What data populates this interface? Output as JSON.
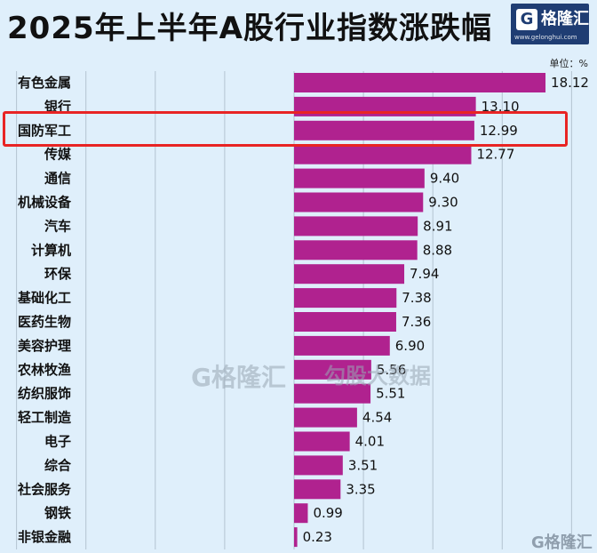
{
  "title": "2025年上半年A股行业指数涨跌幅",
  "unit": "单位：%",
  "logo": {
    "mark": "G",
    "name": "格隆汇",
    "url": "www.gelonghui.com"
  },
  "watermarks": {
    "primary": "G格隆汇",
    "secondary": "勾股大数据",
    "corner": "G格隆汇"
  },
  "highlighted_category": "国防军工",
  "colors": {
    "bar": "#b0228f",
    "highlight": "#e82424",
    "background": "#dfeffb"
  },
  "chart_data": {
    "type": "bar",
    "orientation": "horizontal",
    "title": "2025年上半年A股行业指数涨跌幅",
    "unit": "%",
    "categories": [
      "有色金属",
      "银行",
      "国防军工",
      "传媒",
      "通信",
      "机械设备",
      "汽车",
      "计算机",
      "环保",
      "基础化工",
      "医药生物",
      "美容护理",
      "农林牧渔",
      "纺织服饰",
      "轻工制造",
      "电子",
      "综合",
      "社会服务",
      "钢铁",
      "非银金融"
    ],
    "values": [
      18.12,
      13.1,
      12.99,
      12.77,
      9.4,
      9.3,
      8.91,
      8.88,
      7.94,
      7.38,
      7.36,
      6.9,
      5.56,
      5.51,
      4.54,
      4.01,
      3.51,
      3.35,
      0.99,
      0.23
    ],
    "value_labels": [
      "18.12",
      "13.10",
      "12.99",
      "12.77",
      "9.40",
      "9.30",
      "8.91",
      "8.88",
      "7.94",
      "7.38",
      "7.36",
      "6.90",
      "5.56",
      "5.51",
      "4.54",
      "4.01",
      "3.51",
      "3.35",
      "0.99",
      "0.23"
    ],
    "xlim": [
      -20,
      20
    ],
    "grid": true,
    "legend": "none"
  }
}
